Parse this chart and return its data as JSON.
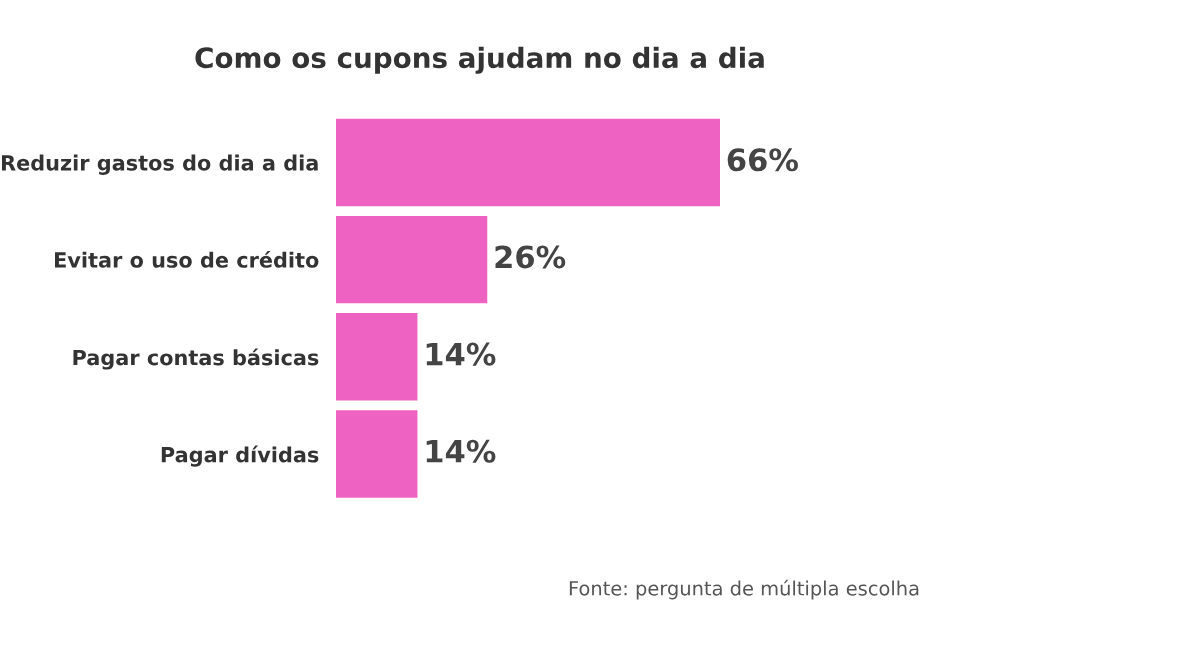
{
  "chart_data": {
    "type": "bar",
    "orientation": "horizontal",
    "title": "Como os cupons ajudam no dia a dia",
    "categories": [
      "Reduzir gastos do dia a dia",
      "Evitar o uso de crédito",
      "Pagar contas básicas",
      "Pagar dívidas"
    ],
    "values": [
      66,
      26,
      14,
      14
    ],
    "value_labels": [
      "66%",
      "26%",
      "14%",
      "14%"
    ],
    "color": "#ee62c1",
    "annotations": [
      "Fonte: pergunta de múltipla escolha"
    ]
  }
}
